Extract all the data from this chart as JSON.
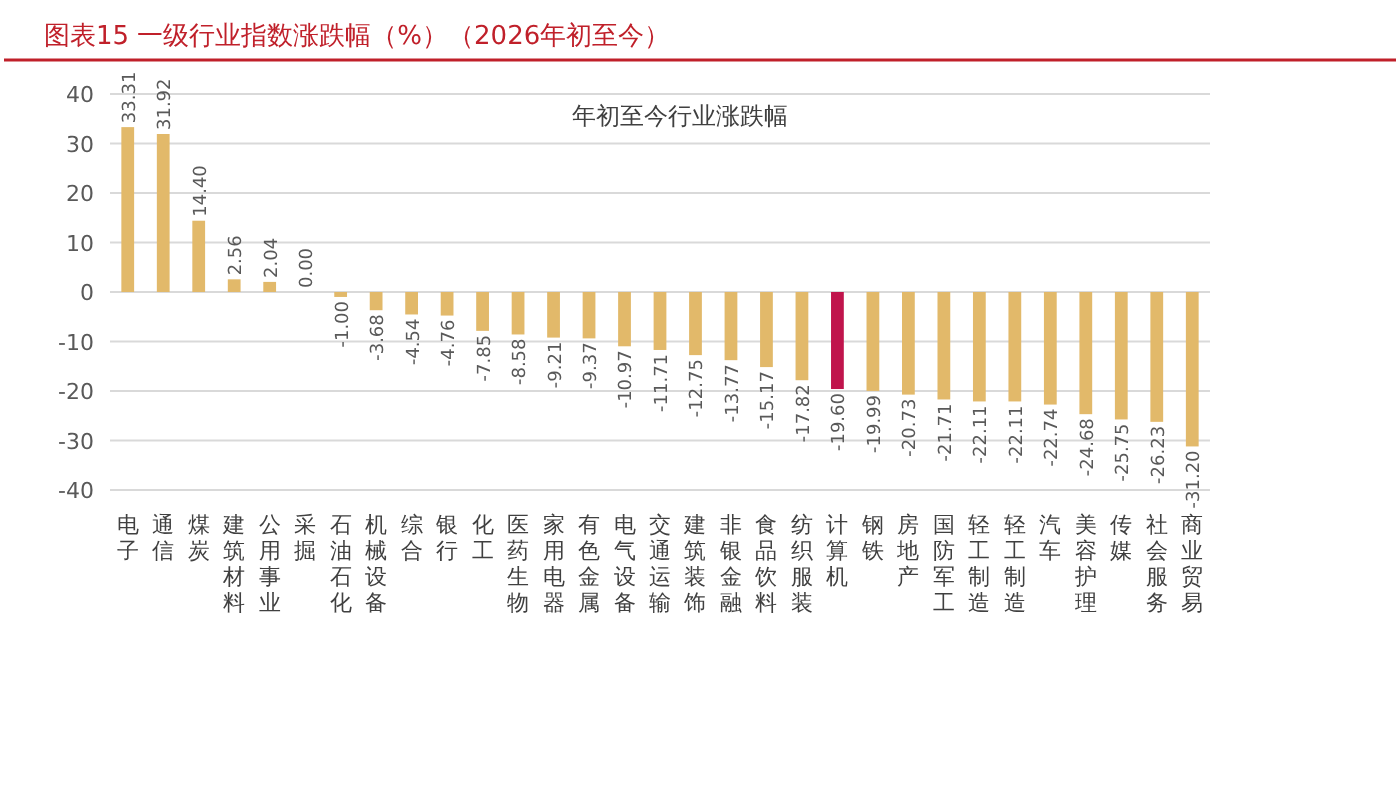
{
  "chart_data": {
    "type": "bar",
    "title": "图表15 一级行业指数涨跌幅（%）（2026年初至今）",
    "subtitle": "年初至今行业涨跌幅",
    "categories": [
      "电子",
      "通信",
      "煤炭",
      "建筑材料",
      "公用事业",
      "采掘",
      "石油石化",
      "机械设备",
      "综合",
      "银行",
      "化工",
      "医药生物",
      "家用电器",
      "有色金属",
      "电气设备",
      "交通运输",
      "建筑装饰",
      "非银金融",
      "食品饮料",
      "纺织服装",
      "计算机",
      "钢铁",
      "房地产",
      "国防军工",
      "轻工制造",
      "轻工制造",
      "汽车",
      "美容护理",
      "传媒",
      "社会服务",
      "商业贸易"
    ],
    "values": [
      33.31,
      31.92,
      14.4,
      2.56,
      2.04,
      0.0,
      -1.0,
      -3.68,
      -4.54,
      -4.76,
      -7.85,
      -8.58,
      -9.21,
      -9.37,
      -10.97,
      -11.71,
      -12.75,
      -13.77,
      -15.17,
      -17.82,
      -19.6,
      -19.99,
      -20.73,
      -21.71,
      -22.11,
      -22.11,
      -22.74,
      -24.68,
      -25.75,
      -26.23,
      -31.2
    ],
    "value_labels": [
      "33.31",
      "31.92",
      "14.40",
      "2.56",
      "2.04",
      "0.00",
      "-1.00",
      "-3.68",
      "-4.54",
      "-4.76",
      "-7.85",
      "-8.58",
      "-9.21",
      "-9.37",
      "-10.97",
      "-11.71",
      "-12.75",
      "-13.77",
      "-15.17",
      "-17.82",
      "-19.60",
      "-19.99",
      "-20.73",
      "-21.71",
      "-22.11",
      "-22.11",
      "-22.74",
      "-24.68",
      "-25.75",
      "-26.23",
      "-31.20"
    ],
    "colors": [
      "#e2b96a",
      "#e2b96a",
      "#e2b96a",
      "#e2b96a",
      "#e2b96a",
      "#e2b96a",
      "#e2b96a",
      "#e2b96a",
      "#e2b96a",
      "#e2b96a",
      "#e2b96a",
      "#e2b96a",
      "#e2b96a",
      "#e2b96a",
      "#e2b96a",
      "#e2b96a",
      "#e2b96a",
      "#e2b96a",
      "#e2b96a",
      "#e2b96a",
      "#c0144c",
      "#e2b96a",
      "#e2b96a",
      "#e2b96a",
      "#e2b96a",
      "#e2b96a",
      "#e2b96a",
      "#e2b96a",
      "#e2b96a",
      "#e2b96a",
      "#e2b96a"
    ],
    "ylim": [
      -40,
      40
    ],
    "yticks": [
      -40,
      -30,
      -20,
      -10,
      0,
      10,
      20,
      30,
      40
    ],
    "grid": "y"
  }
}
